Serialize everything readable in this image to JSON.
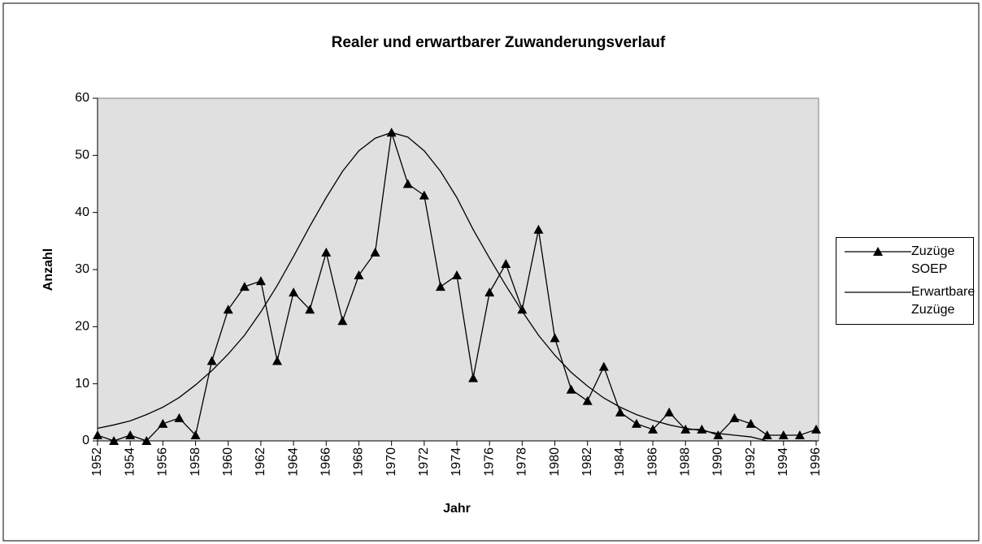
{
  "chart_data": {
    "type": "line",
    "title": "Realer und erwartbarer Zuwanderungsverlauf",
    "x_label": "Jahr",
    "y_label": "Anzahl",
    "x": [
      1952,
      1953,
      1954,
      1955,
      1956,
      1957,
      1958,
      1959,
      1960,
      1961,
      1962,
      1963,
      1964,
      1965,
      1966,
      1967,
      1968,
      1969,
      1970,
      1971,
      1972,
      1973,
      1974,
      1975,
      1976,
      1977,
      1978,
      1979,
      1980,
      1981,
      1982,
      1983,
      1984,
      1985,
      1986,
      1987,
      1988,
      1989,
      1990,
      1991,
      1992,
      1993,
      1994,
      1995,
      1996
    ],
    "series": [
      {
        "name": "Zuzüge SOEP",
        "color": "#000000",
        "marker": "triangle",
        "values": [
          1,
          0,
          1,
          0,
          3,
          4,
          1,
          14,
          23,
          27,
          28,
          14,
          26,
          23,
          33,
          21,
          29,
          33,
          54,
          45,
          43,
          27,
          29,
          11,
          26,
          31,
          23,
          37,
          18,
          9,
          7,
          13,
          5,
          3,
          2,
          5,
          2,
          2,
          1,
          4,
          3,
          1,
          1,
          1,
          2
        ]
      },
      {
        "name": "Erwartbare Zuzüge",
        "color": "#000000",
        "values": [
          2.2,
          2.8,
          3.5,
          4.6,
          5.9,
          7.6,
          9.8,
          12.3,
          15.2,
          18.5,
          22.6,
          27.2,
          32.3,
          37.6,
          42.6,
          47.2,
          50.8,
          53,
          54,
          53.2,
          50.8,
          47.2,
          42.6,
          37,
          32,
          27.2,
          22.7,
          18.5,
          15,
          12,
          9.6,
          7.5,
          5.9,
          4.6,
          3.6,
          2.8,
          2.2,
          1.8,
          1.3,
          1,
          0.7,
          0,
          0,
          0,
          0
        ]
      }
    ],
    "xlim": [
      1952,
      1996
    ],
    "xticks": [
      1952,
      1954,
      1956,
      1958,
      1960,
      1962,
      1964,
      1966,
      1968,
      1970,
      1972,
      1974,
      1976,
      1978,
      1980,
      1982,
      1984,
      1986,
      1988,
      1990,
      1992,
      1994,
      1996
    ],
    "ylim": [
      0,
      60
    ],
    "yticks": [
      0,
      10,
      20,
      30,
      40,
      50,
      60
    ],
    "grid": false,
    "legend": "right",
    "plot_background": "#e0e0e0"
  }
}
